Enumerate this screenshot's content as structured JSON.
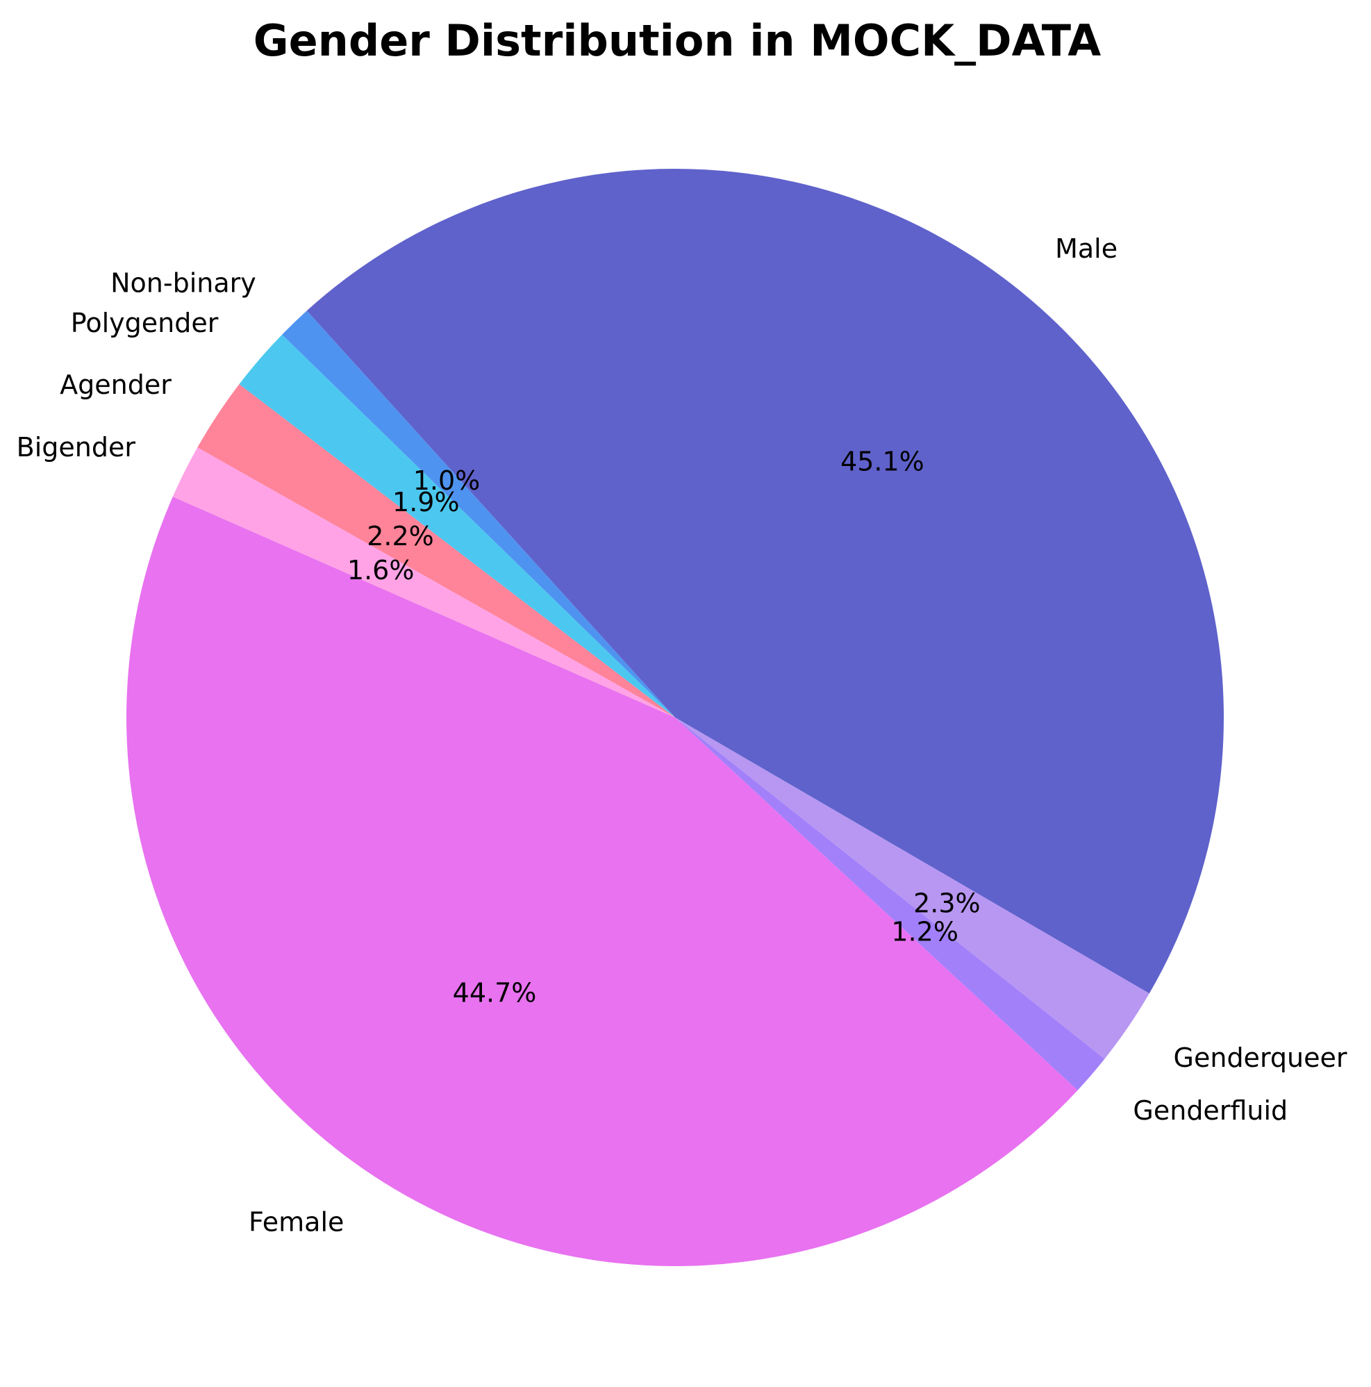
{
  "chart_data": {
    "type": "pie",
    "title": "Gender Distribution in MOCK_DATA",
    "start_angle_deg": -30.2,
    "direction": "counterclockwise",
    "slices": [
      {
        "label": "Male",
        "value": 45.1,
        "pct_label": "45.1%",
        "color": "#5f62cb"
      },
      {
        "label": "Non-binary",
        "value": 1.0,
        "pct_label": "1.0%",
        "color": "#4f93f0"
      },
      {
        "label": "Polygender",
        "value": 1.9,
        "pct_label": "1.9%",
        "color": "#4cc8f0"
      },
      {
        "label": "Agender",
        "value": 2.2,
        "pct_label": "2.2%",
        "color": "#ff8399"
      },
      {
        "label": "Bigender",
        "value": 1.6,
        "pct_label": "1.6%",
        "color": "#ffa3e6"
      },
      {
        "label": "Female",
        "value": 44.7,
        "pct_label": "44.7%",
        "color": "#e872f0"
      },
      {
        "label": "Genderfluid",
        "value": 1.2,
        "pct_label": "1.2%",
        "color": "#a280fa"
      },
      {
        "label": "Genderqueer",
        "value": 2.3,
        "pct_label": "2.3%",
        "color": "#b797f2"
      }
    ]
  }
}
